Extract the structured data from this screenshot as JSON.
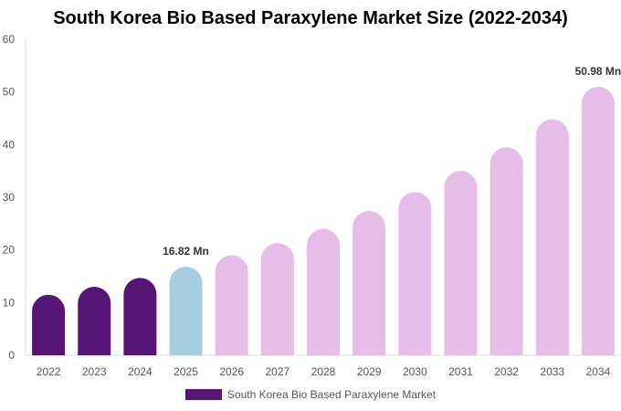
{
  "chart_data": {
    "type": "bar",
    "title": "South Korea Bio Based Paraxylene Market Size (2022-2034)",
    "xlabel": "",
    "ylabel": "",
    "categories": [
      "2022",
      "2023",
      "2024",
      "2025",
      "2026",
      "2027",
      "2028",
      "2029",
      "2030",
      "2031",
      "2032",
      "2033",
      "2034"
    ],
    "series": [
      {
        "name": "South Korea Bio Based Paraxylene Market",
        "values": [
          11.5,
          13.0,
          14.7,
          16.82,
          19.0,
          21.3,
          24.0,
          27.4,
          31.0,
          35.0,
          39.5,
          44.8,
          50.98
        ]
      }
    ],
    "ylim": [
      0,
      60
    ],
    "yticks": [
      0,
      10,
      20,
      30,
      40,
      50,
      60
    ],
    "grid": false,
    "legend": "bottom",
    "colors": {
      "historical": "#561474",
      "base_year": "#a6cce0",
      "forecast": "#e6bde8"
    },
    "bar_color_groups": [
      "historical",
      "historical",
      "historical",
      "base_year",
      "forecast",
      "forecast",
      "forecast",
      "forecast",
      "forecast",
      "forecast",
      "forecast",
      "forecast",
      "forecast"
    ],
    "annotations": [
      {
        "category": "2025",
        "text": "16.82 Mn"
      },
      {
        "category": "2034",
        "text": "50.98 Mn"
      }
    ]
  }
}
